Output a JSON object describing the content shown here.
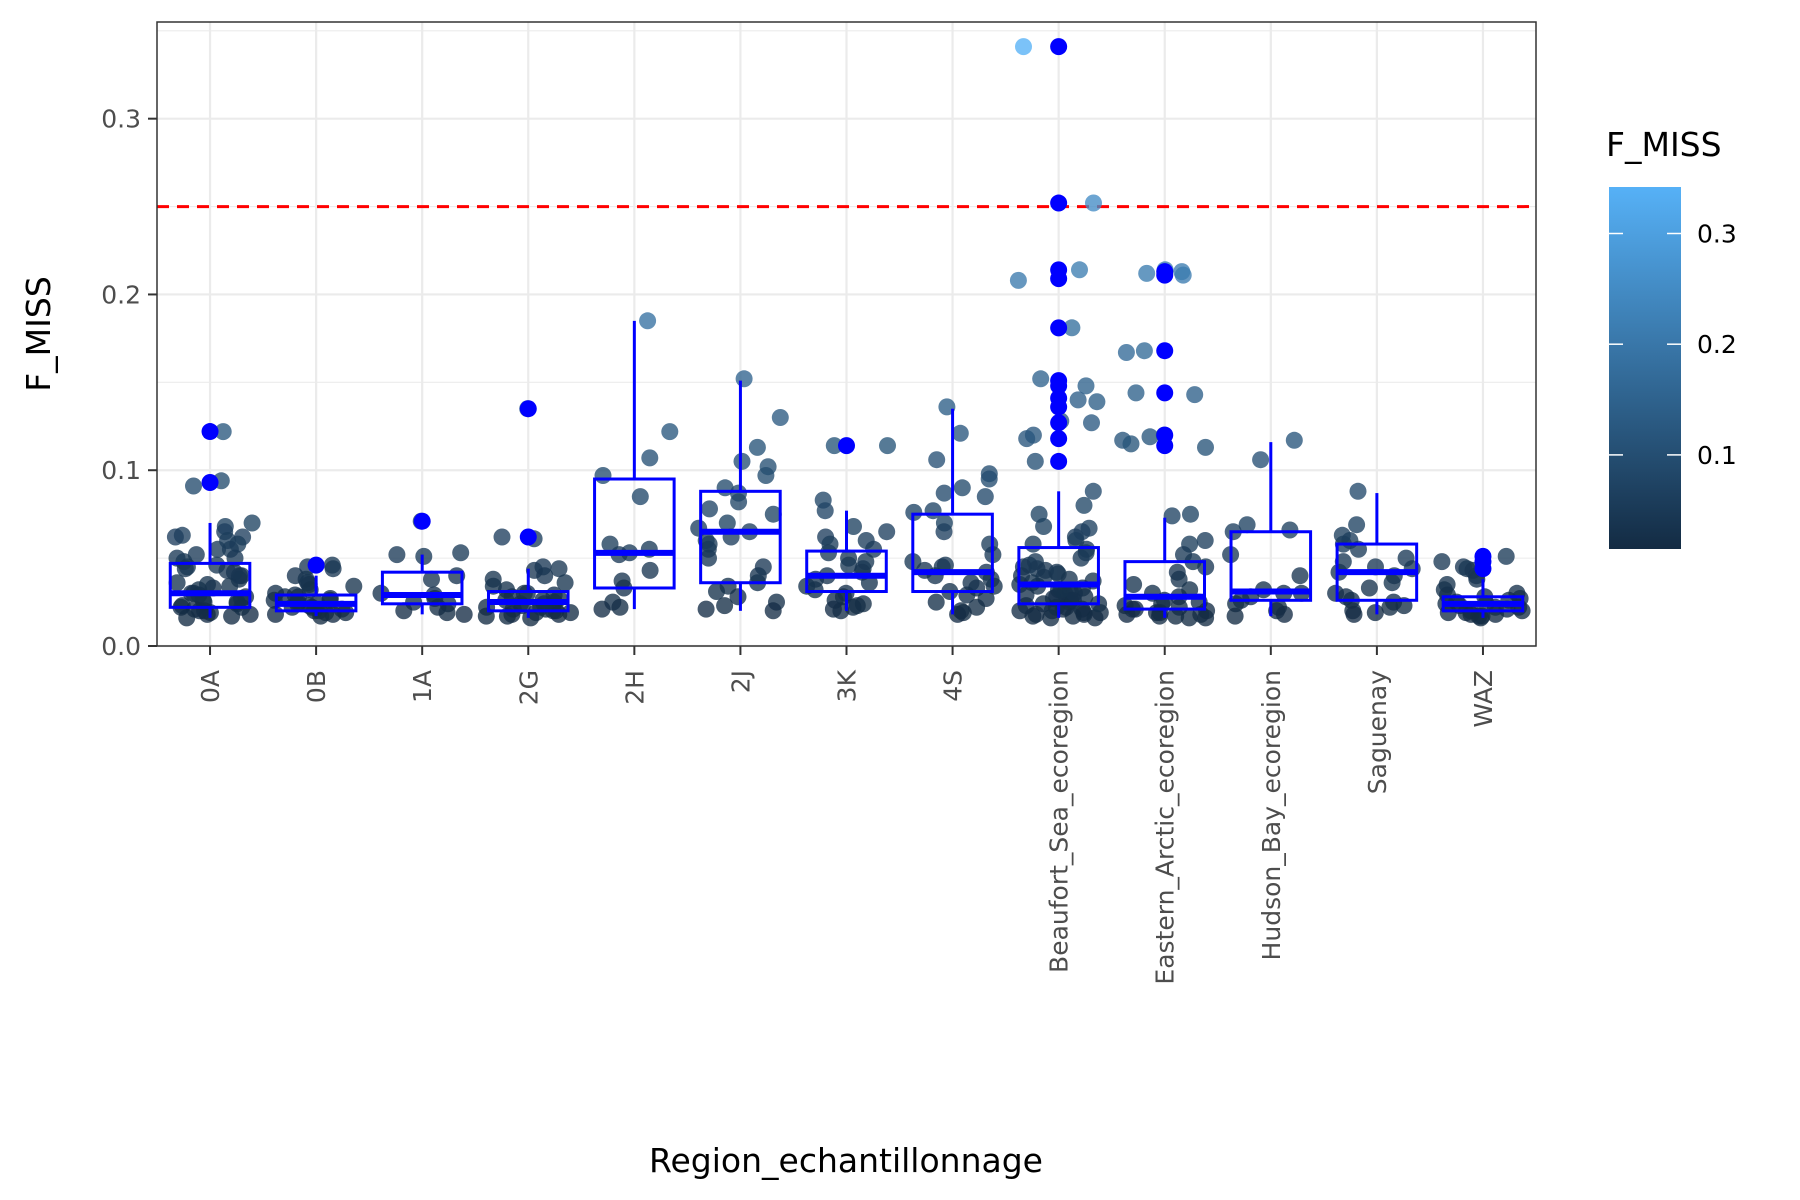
{
  "chart_data": {
    "type": "boxplot-jitter",
    "xlabel": "Region_echantillonnage",
    "ylabel": "F_MISS",
    "ylim": [
      0.0,
      0.355
    ],
    "y_ticks": [
      {
        "value": 0.0,
        "label": "0.0"
      },
      {
        "value": 0.1,
        "label": "0.1"
      },
      {
        "value": 0.2,
        "label": "0.2"
      },
      {
        "value": 0.3,
        "label": "0.3"
      }
    ],
    "grid": true,
    "threshold": {
      "value": 0.25,
      "color": "#ff0000",
      "style": "dashed"
    },
    "box_color": "#0000ff",
    "outlier_color": "#0000ff",
    "legend": {
      "title": "F_MISS",
      "placement": "right",
      "range": [
        0.015,
        0.342
      ],
      "colors": [
        "#132b43",
        "#56b1f7"
      ],
      "ticks": [
        {
          "value": 0.1,
          "label": "0.1"
        },
        {
          "value": 0.2,
          "label": "0.2"
        },
        {
          "value": 0.3,
          "label": "0.3"
        }
      ]
    },
    "categories": [
      {
        "label": "0A",
        "q1": 0.022,
        "median": 0.03,
        "q3": 0.047,
        "whisker_low": 0.016,
        "whisker_high": 0.07,
        "outliers": [
          0.122,
          0.093
        ],
        "points": [
          0.122,
          0.091,
          0.094,
          0.07,
          0.068,
          0.065,
          0.063,
          0.062,
          0.06,
          0.058,
          0.055,
          0.052,
          0.05,
          0.048,
          0.046,
          0.045,
          0.044,
          0.042,
          0.04,
          0.038,
          0.036,
          0.035,
          0.034,
          0.032,
          0.03,
          0.029,
          0.028,
          0.027,
          0.026,
          0.025,
          0.024,
          0.023,
          0.022,
          0.021,
          0.02,
          0.019,
          0.018,
          0.018,
          0.017,
          0.016,
          0.02,
          0.022,
          0.025,
          0.03,
          0.033,
          0.04,
          0.043,
          0.05,
          0.055,
          0.062
        ]
      },
      {
        "label": "0B",
        "q1": 0.02,
        "median": 0.024,
        "q3": 0.029,
        "whisker_low": 0.017,
        "whisker_high": 0.04,
        "outliers": [
          0.046
        ],
        "points": [
          0.046,
          0.045,
          0.044,
          0.04,
          0.038,
          0.036,
          0.035,
          0.034,
          0.032,
          0.03,
          0.029,
          0.028,
          0.027,
          0.026,
          0.025,
          0.024,
          0.023,
          0.022,
          0.021,
          0.02,
          0.02,
          0.019,
          0.019,
          0.018,
          0.018,
          0.017,
          0.022,
          0.024,
          0.026,
          0.028
        ]
      },
      {
        "label": "1A",
        "q1": 0.024,
        "median": 0.029,
        "q3": 0.042,
        "whisker_low": 0.018,
        "whisker_high": 0.052,
        "outliers": [
          0.071
        ],
        "points": [
          0.071,
          0.053,
          0.052,
          0.051,
          0.04,
          0.038,
          0.03,
          0.029,
          0.027,
          0.025,
          0.024,
          0.022,
          0.02,
          0.019,
          0.018
        ]
      },
      {
        "label": "2G",
        "q1": 0.02,
        "median": 0.025,
        "q3": 0.031,
        "whisker_low": 0.016,
        "whisker_high": 0.044,
        "outliers": [
          0.135,
          0.062
        ],
        "points": [
          0.135,
          0.062,
          0.061,
          0.045,
          0.044,
          0.043,
          0.04,
          0.038,
          0.036,
          0.034,
          0.032,
          0.03,
          0.029,
          0.028,
          0.027,
          0.026,
          0.025,
          0.024,
          0.023,
          0.022,
          0.021,
          0.021,
          0.02,
          0.02,
          0.019,
          0.019,
          0.018,
          0.018,
          0.017,
          0.017,
          0.016,
          0.022,
          0.024,
          0.026,
          0.03
        ]
      },
      {
        "label": "2H",
        "q1": 0.033,
        "median": 0.053,
        "q3": 0.095,
        "whisker_low": 0.021,
        "whisker_high": 0.185,
        "outliers": [],
        "points": [
          0.185,
          0.122,
          0.107,
          0.097,
          0.085,
          0.058,
          0.055,
          0.053,
          0.052,
          0.043,
          0.037,
          0.033,
          0.025,
          0.022,
          0.021
        ]
      },
      {
        "label": "2J",
        "q1": 0.036,
        "median": 0.065,
        "q3": 0.088,
        "whisker_low": 0.02,
        "whisker_high": 0.151,
        "outliers": [],
        "points": [
          0.152,
          0.13,
          0.113,
          0.105,
          0.102,
          0.097,
          0.09,
          0.087,
          0.082,
          0.078,
          0.075,
          0.07,
          0.067,
          0.065,
          0.062,
          0.06,
          0.058,
          0.055,
          0.05,
          0.045,
          0.04,
          0.036,
          0.034,
          0.031,
          0.028,
          0.025,
          0.023,
          0.021,
          0.02
        ]
      },
      {
        "label": "3K",
        "q1": 0.031,
        "median": 0.04,
        "q3": 0.054,
        "whisker_low": 0.02,
        "whisker_high": 0.077,
        "outliers": [
          0.114
        ],
        "points": [
          0.114,
          0.114,
          0.083,
          0.077,
          0.068,
          0.065,
          0.062,
          0.06,
          0.058,
          0.055,
          0.053,
          0.05,
          0.048,
          0.046,
          0.044,
          0.042,
          0.04,
          0.038,
          0.036,
          0.034,
          0.032,
          0.03,
          0.028,
          0.026,
          0.024,
          0.023,
          0.022,
          0.021,
          0.02
        ]
      },
      {
        "label": "4S",
        "q1": 0.031,
        "median": 0.042,
        "q3": 0.075,
        "whisker_low": 0.018,
        "whisker_high": 0.135,
        "outliers": [],
        "points": [
          0.136,
          0.121,
          0.106,
          0.098,
          0.095,
          0.09,
          0.087,
          0.085,
          0.077,
          0.076,
          0.07,
          0.065,
          0.058,
          0.052,
          0.048,
          0.046,
          0.045,
          0.043,
          0.042,
          0.04,
          0.038,
          0.036,
          0.034,
          0.033,
          0.031,
          0.029,
          0.027,
          0.025,
          0.022,
          0.02,
          0.019,
          0.018
        ]
      },
      {
        "label": "Beaufort_Sea_ecoregion",
        "q1": 0.024,
        "median": 0.035,
        "q3": 0.056,
        "whisker_low": 0.016,
        "whisker_high": 0.088,
        "outliers": [
          0.341,
          0.252,
          0.214,
          0.209,
          0.181,
          0.151,
          0.148,
          0.141,
          0.136,
          0.127,
          0.118,
          0.105
        ],
        "points": [
          0.341,
          0.252,
          0.214,
          0.208,
          0.181,
          0.152,
          0.148,
          0.14,
          0.139,
          0.128,
          0.127,
          0.12,
          0.118,
          0.105,
          0.088,
          0.08,
          0.075,
          0.068,
          0.067,
          0.065,
          0.062,
          0.06,
          0.058,
          0.055,
          0.053,
          0.05,
          0.048,
          0.046,
          0.045,
          0.044,
          0.043,
          0.042,
          0.041,
          0.04,
          0.039,
          0.038,
          0.037,
          0.036,
          0.035,
          0.034,
          0.033,
          0.032,
          0.031,
          0.03,
          0.029,
          0.028,
          0.027,
          0.026,
          0.025,
          0.024,
          0.023,
          0.022,
          0.021,
          0.021,
          0.02,
          0.02,
          0.019,
          0.019,
          0.018,
          0.018,
          0.017,
          0.017,
          0.016,
          0.016,
          0.022,
          0.024,
          0.026,
          0.028,
          0.03,
          0.032
        ]
      },
      {
        "label": "Eastern_Arctic_ecoregion",
        "q1": 0.021,
        "median": 0.028,
        "q3": 0.048,
        "whisker_low": 0.016,
        "whisker_high": 0.073,
        "outliers": [
          0.213,
          0.211,
          0.168,
          0.144,
          0.12,
          0.114
        ],
        "points": [
          0.214,
          0.213,
          0.211,
          0.212,
          0.168,
          0.167,
          0.144,
          0.143,
          0.12,
          0.119,
          0.117,
          0.115,
          0.113,
          0.075,
          0.074,
          0.06,
          0.058,
          0.052,
          0.048,
          0.045,
          0.042,
          0.038,
          0.035,
          0.032,
          0.03,
          0.028,
          0.026,
          0.025,
          0.024,
          0.023,
          0.022,
          0.021,
          0.021,
          0.02,
          0.019,
          0.019,
          0.018,
          0.018,
          0.017,
          0.017,
          0.016,
          0.016
        ]
      },
      {
        "label": "Hudson_Bay_ecoregion",
        "q1": 0.026,
        "median": 0.031,
        "q3": 0.065,
        "whisker_low": 0.017,
        "whisker_high": 0.116,
        "outliers": [],
        "points": [
          0.117,
          0.106,
          0.069,
          0.066,
          0.065,
          0.052,
          0.04,
          0.032,
          0.03,
          0.03,
          0.028,
          0.026,
          0.024,
          0.022,
          0.02,
          0.018,
          0.017
        ]
      },
      {
        "label": "Saguenay",
        "q1": 0.026,
        "median": 0.042,
        "q3": 0.058,
        "whisker_low": 0.018,
        "whisker_high": 0.087,
        "outliers": [],
        "points": [
          0.088,
          0.069,
          0.063,
          0.06,
          0.058,
          0.055,
          0.05,
          0.048,
          0.045,
          0.044,
          0.042,
          0.04,
          0.036,
          0.033,
          0.03,
          0.028,
          0.026,
          0.025,
          0.023,
          0.022,
          0.02,
          0.019,
          0.018
        ]
      },
      {
        "label": "WAZ",
        "q1": 0.02,
        "median": 0.024,
        "q3": 0.028,
        "whisker_low": 0.016,
        "whisker_high": 0.038,
        "outliers": [
          0.051,
          0.048,
          0.044
        ],
        "points": [
          0.051,
          0.048,
          0.045,
          0.044,
          0.043,
          0.04,
          0.038,
          0.035,
          0.032,
          0.03,
          0.029,
          0.028,
          0.027,
          0.026,
          0.025,
          0.024,
          0.023,
          0.022,
          0.021,
          0.02,
          0.02,
          0.019,
          0.019,
          0.018,
          0.018,
          0.017,
          0.017,
          0.016,
          0.022,
          0.024
        ]
      }
    ]
  }
}
